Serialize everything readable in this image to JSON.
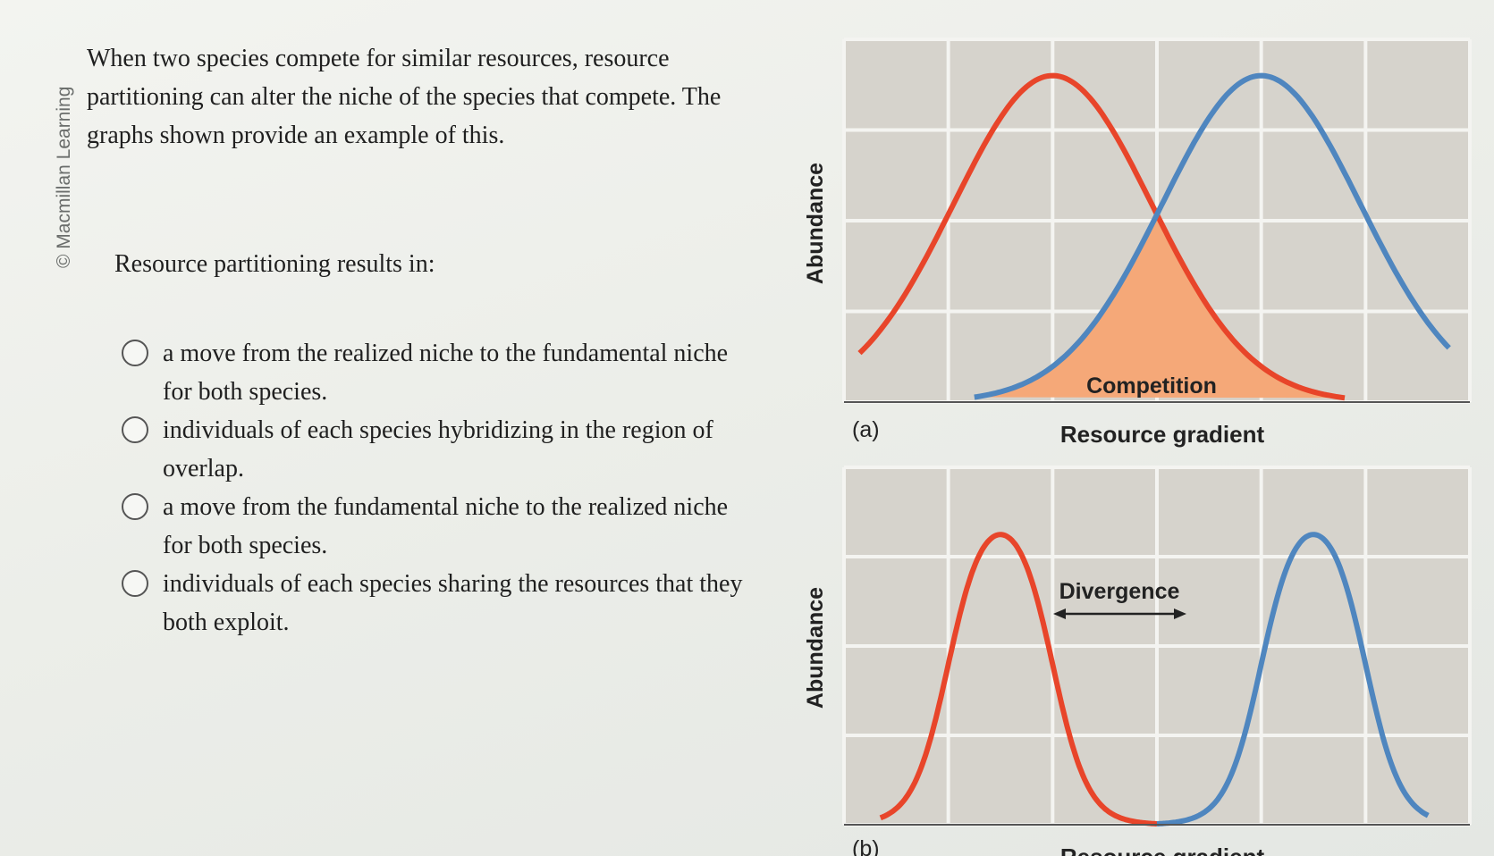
{
  "watermark": "© Macmillan Learning",
  "intro_text": "When two species compete for similar resources, resource partitioning can alter the niche of the species that compete. The graphs shown provide an example of this.",
  "question": "Resource partitioning results in:",
  "options": [
    {
      "label": "a move from the realized niche to the fundamental niche for both species."
    },
    {
      "label": "individuals of each species hybridizing in the region of overlap."
    },
    {
      "label": "a move from the fundamental niche to the realized niche for both species."
    },
    {
      "label": "individuals of each species sharing the resources that they both exploit."
    }
  ],
  "colors": {
    "species_1": "#e8452a",
    "species_2": "#4f86bf",
    "overlap_fill": "#f5a878",
    "grid_background": "#d6d3cc",
    "grid_lines": "#f4f4f1"
  },
  "chart_data": [
    {
      "type": "line",
      "panel_label": "(a)",
      "xlabel": "Resource gradient",
      "ylabel": "Abundance",
      "annotation": "Competition",
      "grid": true,
      "series": [
        {
          "x": [
            0,
            1,
            2,
            3,
            4,
            5,
            6
          ],
          "values": [
            0.05,
            0.45,
            0.9,
            0.55,
            0.05,
            0,
            0
          ]
        },
        {
          "x": [
            0,
            1,
            2,
            3,
            4,
            5,
            6
          ],
          "values": [
            0,
            0,
            0.05,
            0.55,
            0.9,
            0.45,
            0.03
          ]
        }
      ]
    },
    {
      "type": "line",
      "panel_label": "(b)",
      "xlabel": "Resource gradient",
      "ylabel": "Abundance",
      "annotation": "Divergence",
      "grid": true,
      "series": [
        {
          "x": [
            0,
            1,
            2,
            3
          ],
          "values": [
            0,
            0.9,
            0.9,
            0
          ]
        },
        {
          "x": [
            3,
            4,
            5,
            6
          ],
          "values": [
            0,
            0.9,
            0.9,
            0
          ]
        }
      ]
    }
  ]
}
